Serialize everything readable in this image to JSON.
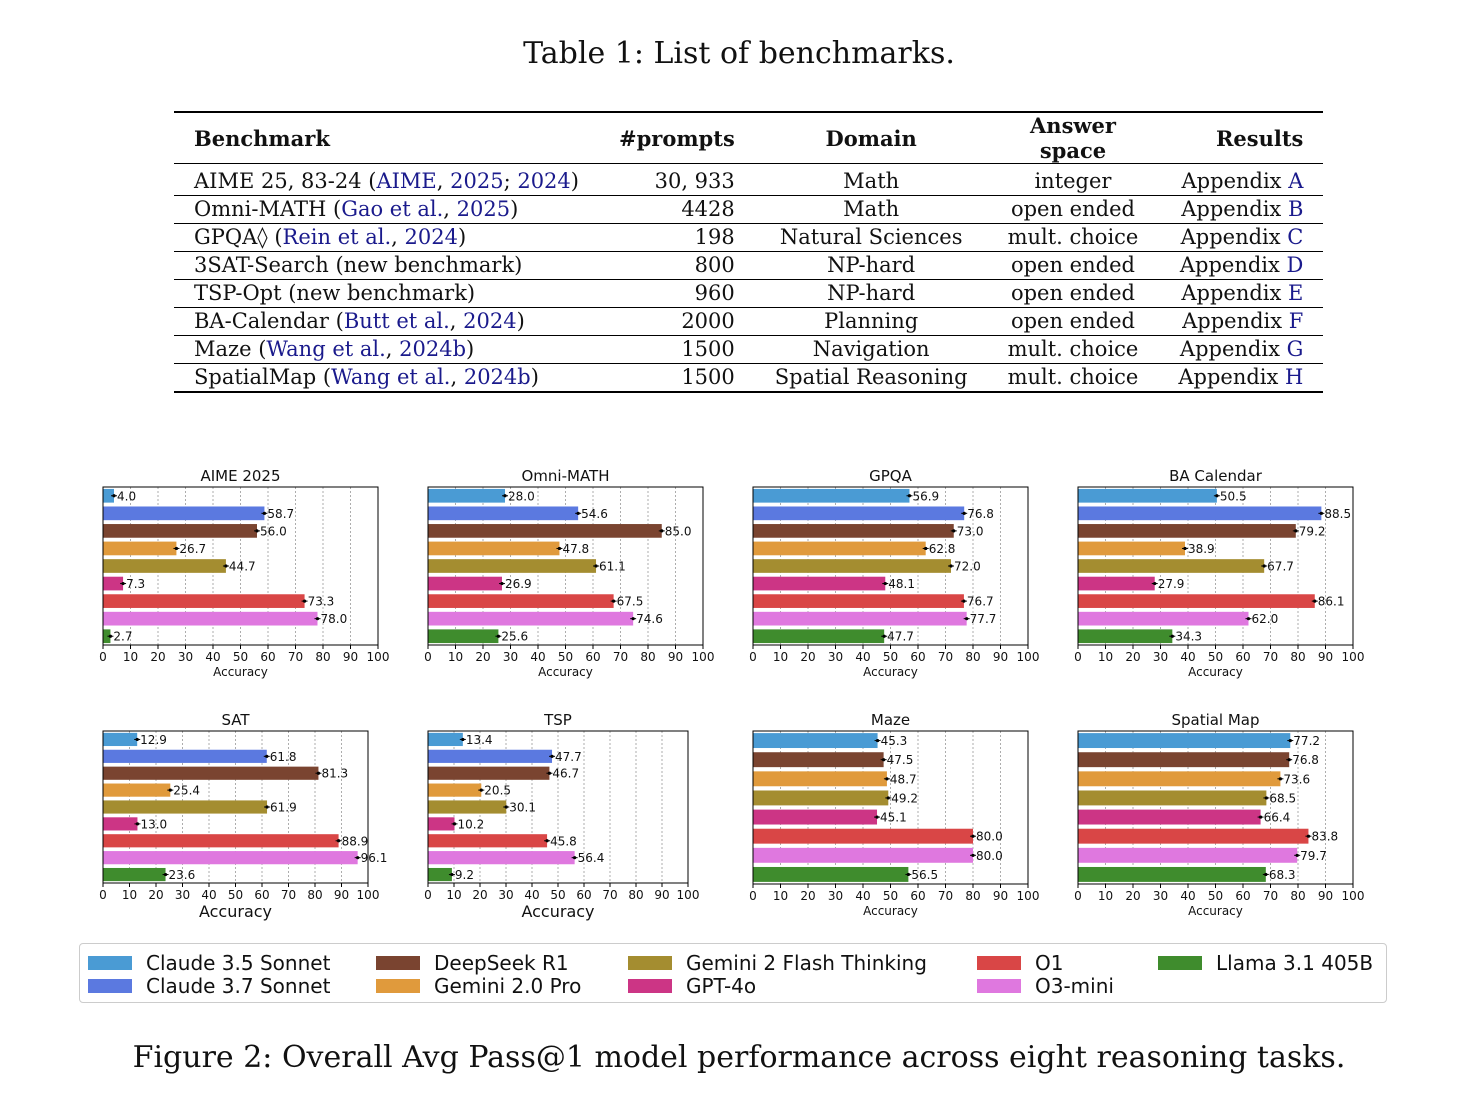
{
  "table": {
    "caption": "Table 1: List of benchmarks.",
    "headers": [
      "Benchmark",
      "#prompts",
      "Domain",
      "Answer space",
      "Results"
    ],
    "rows": [
      {
        "name": "AIME 25, 83-24 (",
        "refs": [
          "AIME",
          ", ",
          "2025",
          "; ",
          "2024"
        ],
        "tail": ")",
        "prompts": "30, 933",
        "domain": "Math",
        "answer": "integer",
        "res_pre": "Appendix ",
        "res_link": "A"
      },
      {
        "name": "Omni-MATH (",
        "refs": [
          "Gao et al.",
          ", ",
          "2025"
        ],
        "tail": ")",
        "prompts": "4428",
        "domain": "Math",
        "answer": "open ended",
        "res_pre": "Appendix ",
        "res_link": "B"
      },
      {
        "name": "GPQA◊ (",
        "refs": [
          "Rein et al.",
          ", ",
          "2024"
        ],
        "tail": ")",
        "prompts": "198",
        "domain": "Natural Sciences",
        "answer": "mult. choice",
        "res_pre": "Appendix ",
        "res_link": "C"
      },
      {
        "name": "3SAT-Search (new benchmark)",
        "refs": [],
        "tail": "",
        "prompts": "800",
        "domain": "NP-hard",
        "answer": "open ended",
        "res_pre": "Appendix ",
        "res_link": "D"
      },
      {
        "name": "TSP-Opt (new benchmark)",
        "refs": [],
        "tail": "",
        "prompts": "960",
        "domain": "NP-hard",
        "answer": "open ended",
        "res_pre": "Appendix ",
        "res_link": "E"
      },
      {
        "name": "BA-Calendar (",
        "refs": [
          "Butt et al.",
          ", ",
          "2024"
        ],
        "tail": ")",
        "prompts": "2000",
        "domain": "Planning",
        "answer": "open ended",
        "res_pre": "Appendix ",
        "res_link": "F"
      },
      {
        "name": "Maze (",
        "refs": [
          "Wang et al.",
          ", ",
          "2024b"
        ],
        "tail": ")",
        "prompts": "1500",
        "domain": "Navigation",
        "answer": "mult. choice",
        "res_pre": "Appendix ",
        "res_link": "G"
      },
      {
        "name": "SpatialMap (",
        "refs": [
          "Wang et al.",
          ", ",
          "2024b"
        ],
        "tail": ")",
        "prompts": "1500",
        "domain": "Spatial Reasoning",
        "answer": "mult. choice",
        "res_pre": "Appendix ",
        "res_link": "H"
      }
    ]
  },
  "colors": {
    "Claude 3.5 Sonnet": "#4a9bd4",
    "Claude 3.7 Sonnet": "#5b79e0",
    "DeepSeek R1": "#7a4430",
    "Gemini 2.0 Pro": "#e09a3c",
    "Gemini 2 Flash Thinking": "#a48d30",
    "GPT-4o": "#cc3585",
    "O1": "#d94646",
    "O3-mini": "#df78df",
    "Llama 3.1 405B": "#3f8c2d"
  },
  "chart_data": [
    {
      "type": "bar",
      "title": "AIME 2025",
      "xlabel": "Accuracy",
      "xlim": [
        0,
        100
      ],
      "categories": [
        "Claude 3.5 Sonnet",
        "Claude 3.7 Sonnet",
        "DeepSeek R1",
        "Gemini 2.0 Pro",
        "Gemini 2 Flash Thinking",
        "GPT-4o",
        "O1",
        "O3-mini",
        "Llama 3.1 405B"
      ],
      "values": [
        4.0,
        58.7,
        56.0,
        26.7,
        44.7,
        7.3,
        73.3,
        78.0,
        2.7
      ]
    },
    {
      "type": "bar",
      "title": "Omni-MATH",
      "xlabel": "Accuracy",
      "xlim": [
        0,
        100
      ],
      "categories": [
        "Claude 3.5 Sonnet",
        "Claude 3.7 Sonnet",
        "DeepSeek R1",
        "Gemini 2.0 Pro",
        "Gemini 2 Flash Thinking",
        "GPT-4o",
        "O1",
        "O3-mini",
        "Llama 3.1 405B"
      ],
      "values": [
        28.0,
        54.6,
        85.0,
        47.8,
        61.1,
        26.9,
        67.5,
        74.6,
        25.6
      ]
    },
    {
      "type": "bar",
      "title": "GPQA",
      "xlabel": "Accuracy",
      "xlim": [
        0,
        100
      ],
      "categories": [
        "Claude 3.5 Sonnet",
        "Claude 3.7 Sonnet",
        "DeepSeek R1",
        "Gemini 2.0 Pro",
        "Gemini 2 Flash Thinking",
        "GPT-4o",
        "O1",
        "O3-mini",
        "Llama 3.1 405B"
      ],
      "values": [
        56.9,
        76.8,
        73.0,
        62.8,
        72.0,
        48.1,
        76.7,
        77.7,
        47.7
      ]
    },
    {
      "type": "bar",
      "title": "BA Calendar",
      "xlabel": "Accuracy",
      "xlim": [
        0,
        100
      ],
      "categories": [
        "Claude 3.5 Sonnet",
        "Claude 3.7 Sonnet",
        "DeepSeek R1",
        "Gemini 2.0 Pro",
        "Gemini 2 Flash Thinking",
        "GPT-4o",
        "O1",
        "O3-mini",
        "Llama 3.1 405B"
      ],
      "values": [
        50.5,
        88.5,
        79.2,
        38.9,
        67.7,
        27.9,
        86.1,
        62.0,
        34.3
      ]
    },
    {
      "type": "bar",
      "title": "SAT",
      "xlabel": "Accuracy",
      "xlim": [
        0,
        100
      ],
      "categories": [
        "Claude 3.5 Sonnet",
        "Claude 3.7 Sonnet",
        "DeepSeek R1",
        "Gemini 2.0 Pro",
        "Gemini 2 Flash Thinking",
        "GPT-4o",
        "O1",
        "O3-mini",
        "Llama 3.1 405B"
      ],
      "values": [
        12.9,
        61.8,
        81.3,
        25.4,
        61.9,
        13.0,
        88.9,
        96.1,
        23.6
      ]
    },
    {
      "type": "bar",
      "title": "TSP",
      "xlabel": "Accuracy",
      "xlim": [
        0,
        100
      ],
      "categories": [
        "Claude 3.5 Sonnet",
        "Claude 3.7 Sonnet",
        "DeepSeek R1",
        "Gemini 2.0 Pro",
        "Gemini 2 Flash Thinking",
        "GPT-4o",
        "O1",
        "O3-mini",
        "Llama 3.1 405B"
      ],
      "values": [
        13.4,
        47.7,
        46.7,
        20.5,
        30.1,
        10.2,
        45.8,
        56.4,
        9.2
      ]
    },
    {
      "type": "bar",
      "title": "Maze",
      "xlabel": "Accuracy",
      "xlim": [
        0,
        100
      ],
      "categories": [
        "Claude 3.5 Sonnet",
        "DeepSeek R1",
        "Gemini 2.0 Pro",
        "Gemini 2 Flash Thinking",
        "GPT-4o",
        "O1",
        "O3-mini",
        "Llama 3.1 405B"
      ],
      "values": [
        45.3,
        47.5,
        48.7,
        49.2,
        45.1,
        80.0,
        80.0,
        56.5
      ]
    },
    {
      "type": "bar",
      "title": "Spatial Map",
      "xlabel": "Accuracy",
      "xlim": [
        0,
        100
      ],
      "categories": [
        "Claude 3.5 Sonnet",
        "DeepSeek R1",
        "Gemini 2.0 Pro",
        "Gemini 2 Flash Thinking",
        "GPT-4o",
        "O1",
        "O3-mini",
        "Llama 3.1 405B"
      ],
      "values": [
        77.2,
        76.8,
        73.6,
        68.5,
        66.4,
        83.8,
        79.7,
        68.3
      ]
    }
  ],
  "legend": [
    "Claude 3.5 Sonnet",
    "Claude 3.7 Sonnet",
    "DeepSeek R1",
    "Gemini 2.0 Pro",
    "Gemini 2 Flash Thinking",
    "GPT-4o",
    "O1",
    "O3-mini",
    "Llama 3.1 405B"
  ],
  "figure_caption": "Figure 2: Overall Avg Pass@1 model performance across eight reasoning tasks."
}
